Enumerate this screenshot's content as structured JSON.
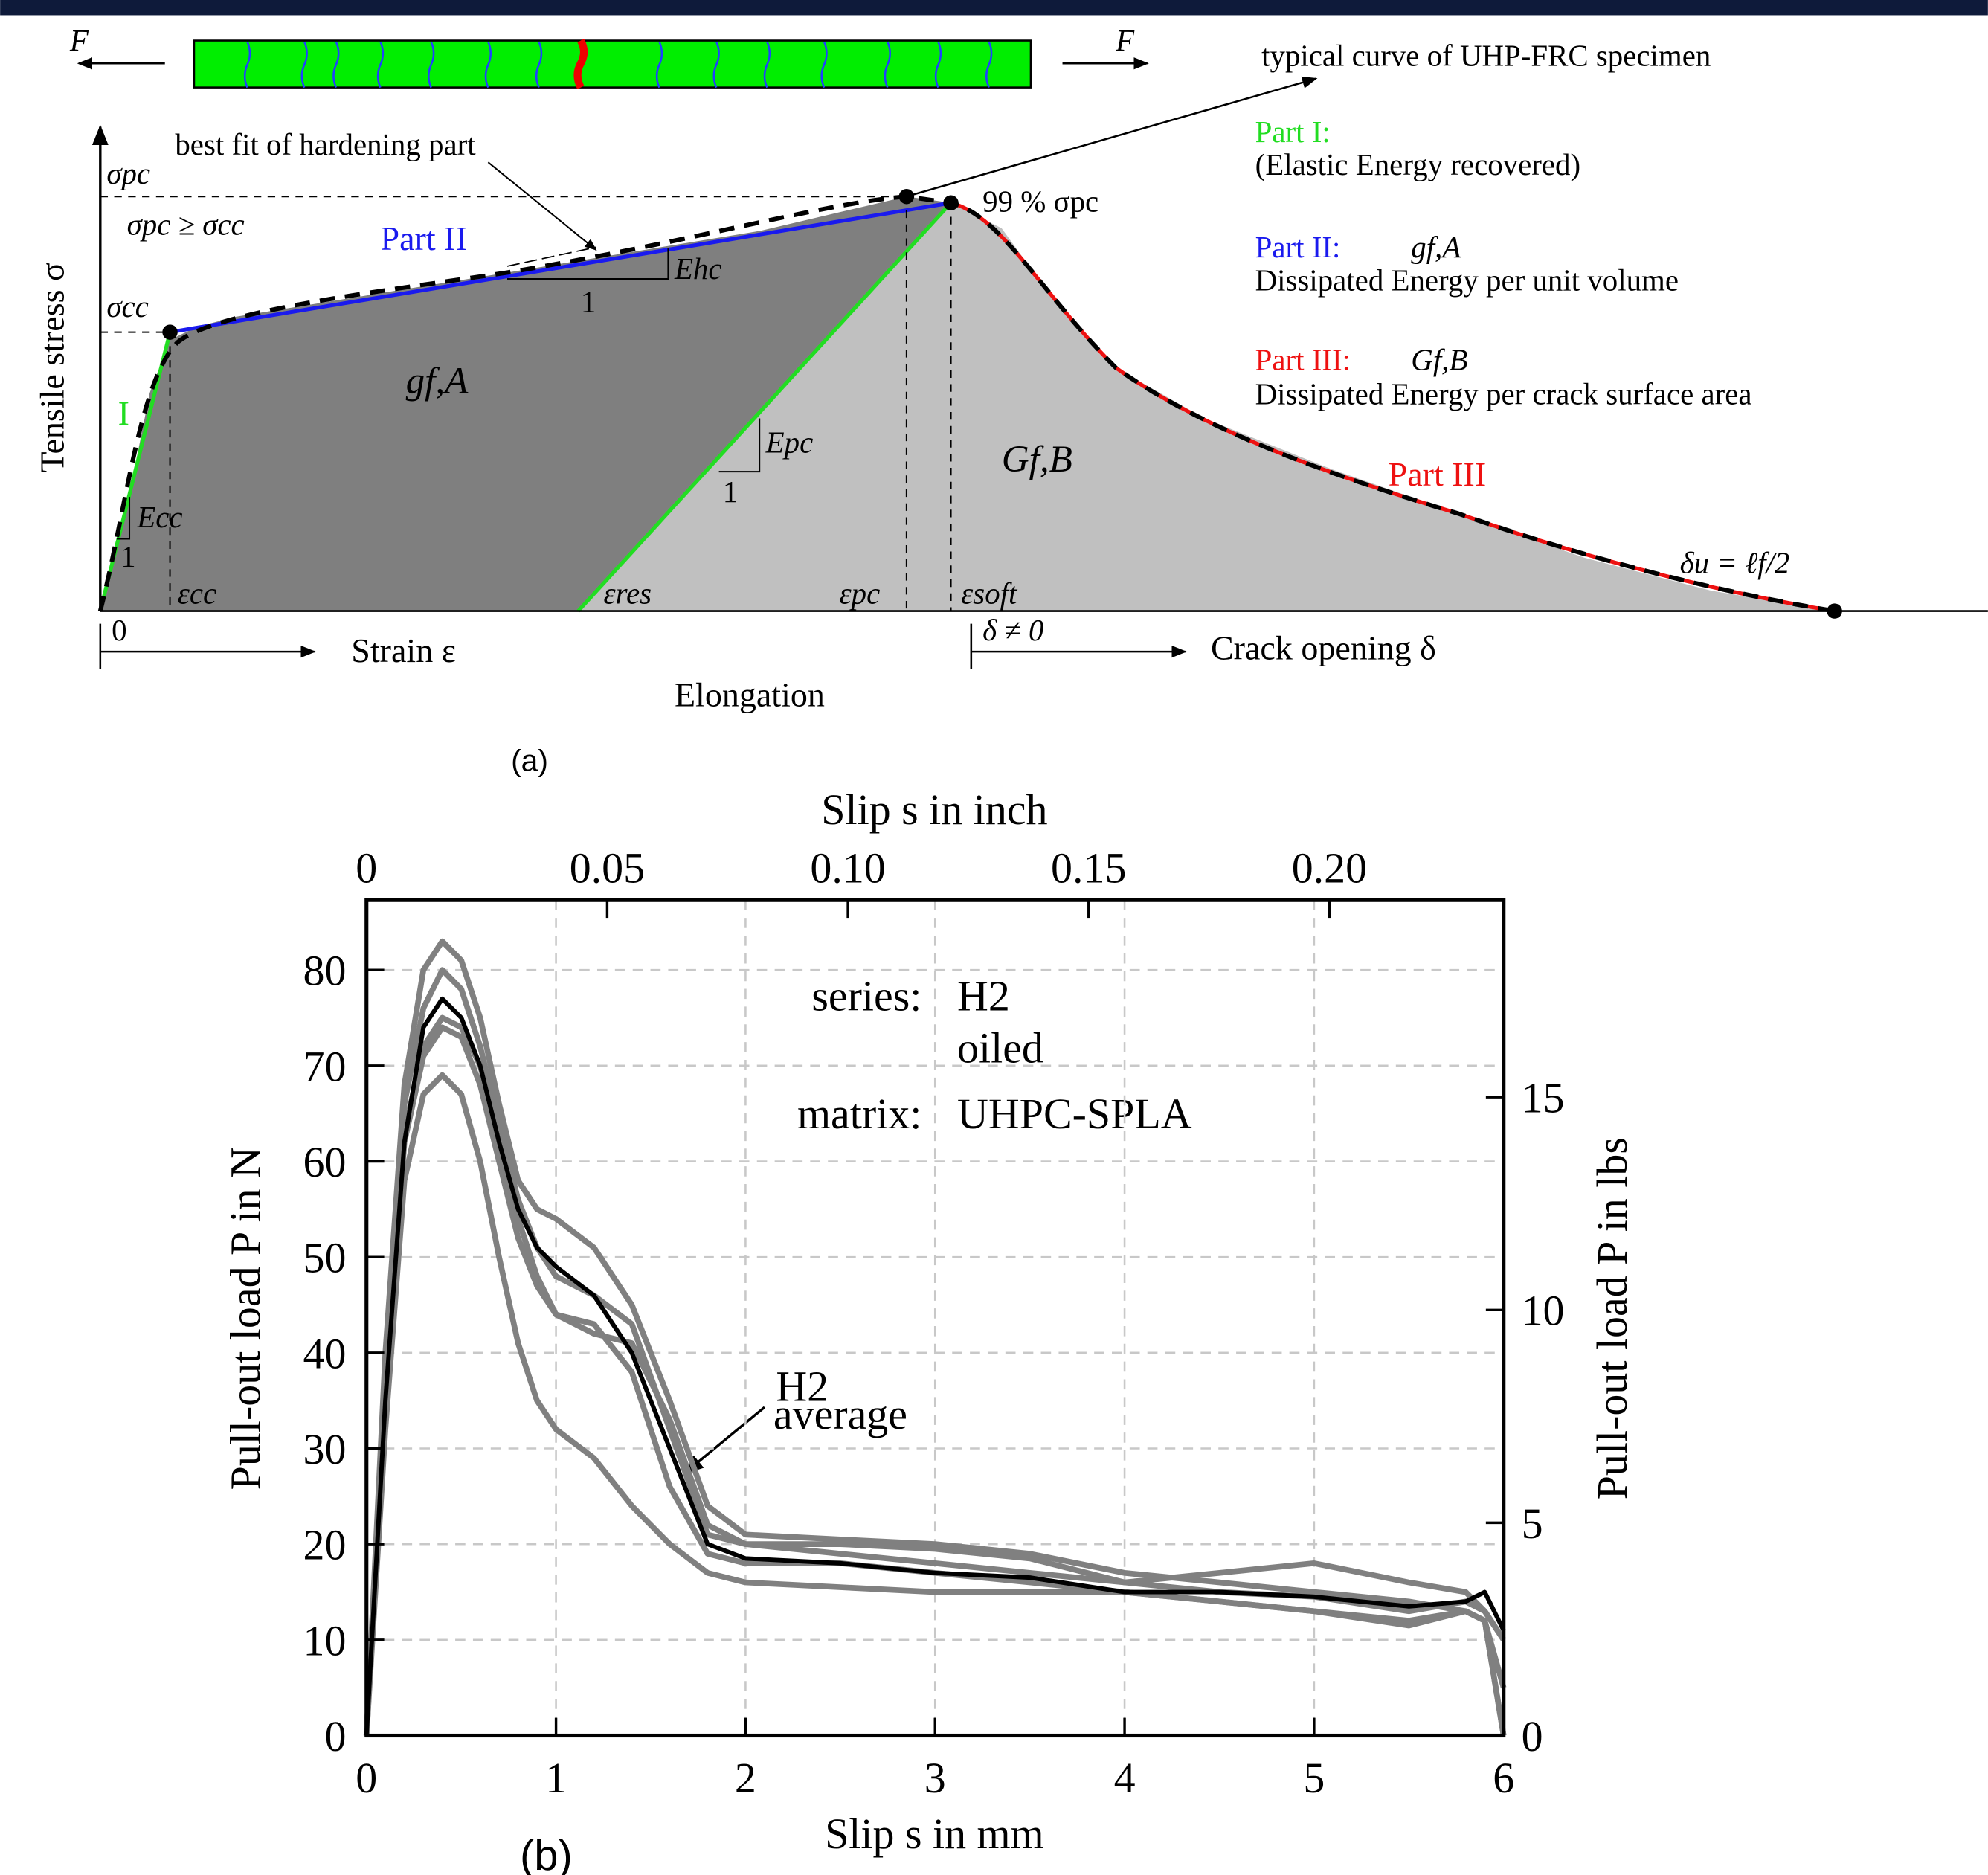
{
  "panel_a": {
    "label": "(a)",
    "force_left": "F",
    "force_right": "F",
    "curve_note": "typical curve of UHP-FRC specimen",
    "fit_note": "best fit of hardening part",
    "part1_title": "Part I:",
    "part1_text": "(Elastic Energy recovered)",
    "part2_title": "Part II:",
    "part2_symbol": "gf,A",
    "part2_text": "Dissipated Energy per unit volume",
    "part3_title": "Part III:",
    "part3_symbol": "Gf,B",
    "part3_text": "Dissipated Energy per crack surface area",
    "sigma_pc": "σpc",
    "sigma_cond": "σpc ≥ σcc",
    "sigma_cc": "σcc",
    "peak_note": "99 % σpc",
    "part2_curve": "Part II",
    "part3_curve": "Part III",
    "part1_curve": "I",
    "e_hc": "Ehc",
    "e_hc_run": "1",
    "e_pc": "Epc",
    "e_pc_run": "1",
    "e_cc": "Ecc",
    "e_cc_run": "1",
    "area_a": "gf,A",
    "area_b": "Gf,B",
    "eps_cc": "εcc",
    "eps_res": "εres",
    "eps_pc": "εpc",
    "eps_soft": "εsoft",
    "origin": "0",
    "strain": "Strain ε",
    "delta_nonzero": "δ ≠ 0",
    "crack_opening": "Crack opening δ",
    "elongation": "Elongation",
    "y_label": "Tensile stress σ",
    "delta_u": "δu = ℓf/2"
  },
  "chart_data": {
    "type": "line",
    "label": "(b)",
    "x_label": "Slip s in mm",
    "x2_label": "Slip s in inch",
    "y_label": "Pull-out load P in N",
    "y2_label": "Pull-out load P in lbs",
    "annotations": [
      "series:",
      "H2",
      "oiled",
      "matrix:",
      "UHPC-SPLA",
      "H2",
      "average"
    ],
    "grid": true,
    "xlim": [
      0,
      6
    ],
    "xticks": [
      0,
      1,
      2,
      3,
      4,
      5,
      6
    ],
    "x2lim": [
      0,
      0.2362
    ],
    "x2ticks": [
      0,
      0.05,
      {
        "value": 0.1,
        "label": "0.10"
      },
      0.15,
      {
        "value": 0.2,
        "label": "0.20"
      }
    ],
    "ylim": [
      0,
      87.3
    ],
    "yticks": [
      0,
      10,
      20,
      30,
      40,
      50,
      60,
      70,
      80
    ],
    "y2lim": [
      0,
      19.63
    ],
    "y2ticks": [
      0,
      5,
      10,
      15
    ],
    "x": [
      0,
      0.1,
      0.2,
      0.3,
      0.4,
      0.5,
      0.6,
      0.7,
      0.8,
      0.9,
      1.0,
      1.2,
      1.4,
      1.6,
      1.8,
      2.0,
      2.5,
      3.0,
      3.5,
      4.0,
      4.5,
      5.0,
      5.5,
      5.8,
      5.9,
      6.0
    ],
    "series": [
      {
        "color": "#808080",
        "values": [
          0,
          40,
          68,
          80,
          83,
          81,
          75,
          66,
          58,
          55,
          54,
          51,
          45,
          35,
          24,
          21,
          20.5,
          20,
          19,
          17,
          16,
          15,
          14,
          13,
          12,
          0
        ]
      },
      {
        "color": "#808080",
        "values": [
          0,
          36,
          63,
          72,
          75,
          74,
          70,
          62,
          54,
          48,
          44,
          42,
          41,
          33,
          22,
          20,
          19,
          18,
          17,
          16,
          15,
          14.5,
          13,
          14,
          13,
          10
        ]
      },
      {
        "color": "#808080",
        "values": [
          0,
          32,
          58,
          67,
          69,
          67,
          60,
          50,
          41,
          35,
          32,
          29,
          24,
          20,
          17,
          16,
          15.5,
          15,
          15,
          15,
          14,
          13,
          12,
          13,
          12,
          5
        ]
      },
      {
        "color": "#808080",
        "values": [
          0,
          35,
          62,
          71,
          74,
          73,
          68,
          60,
          52,
          47,
          44,
          43,
          38,
          26,
          19,
          18,
          18,
          17,
          16,
          15,
          14,
          13,
          11.5,
          13,
          12,
          0
        ]
      },
      {
        "color": "#808080",
        "values": [
          0,
          38,
          66,
          76,
          80,
          78,
          72,
          64,
          56,
          51,
          48,
          46,
          43,
          32,
          21,
          20,
          20,
          19.5,
          18.5,
          16,
          17,
          18,
          16,
          15,
          13,
          10
        ]
      },
      {
        "color": "#000000",
        "values": [
          0,
          35,
          62,
          74,
          77,
          75,
          70,
          62,
          55,
          51,
          49,
          46,
          40,
          30,
          20,
          18.5,
          18,
          17,
          16.5,
          15,
          15,
          14.5,
          13.5,
          14,
          15,
          11
        ]
      }
    ]
  }
}
